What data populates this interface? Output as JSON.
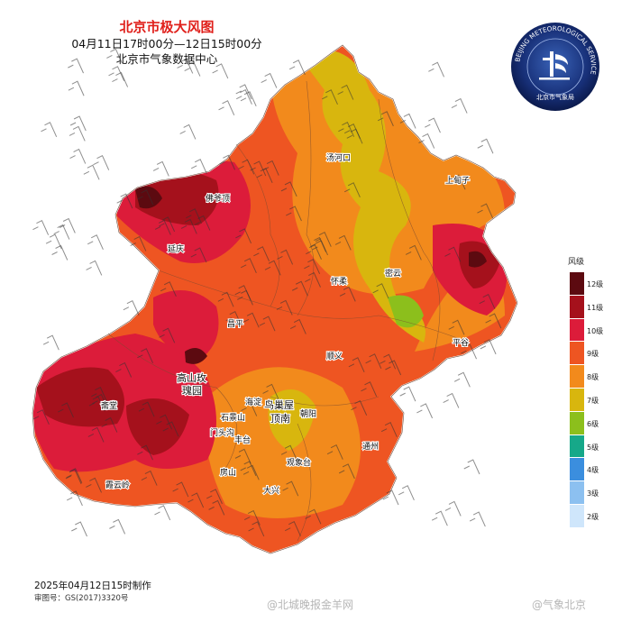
{
  "header": {
    "title": "北京市极大风图",
    "time_range": "04月11日17时00分—12日15时00分",
    "source": "北京市气象数据中心"
  },
  "logo": {
    "ring_text": "BEIJING METEOROLOGICAL SERVICE",
    "cn_text": "北京市气象局"
  },
  "legend": {
    "title": "风级",
    "levels": [
      {
        "label": "12级",
        "color": "#5c0a10"
      },
      {
        "label": "11级",
        "color": "#a5111c"
      },
      {
        "label": "10级",
        "color": "#dc1c3a"
      },
      {
        "label": "9级",
        "color": "#ee5522"
      },
      {
        "label": "8级",
        "color": "#f28a1c"
      },
      {
        "label": "7级",
        "color": "#d8b60e"
      },
      {
        "label": "6级",
        "color": "#8cbf1c"
      },
      {
        "label": "5级",
        "color": "#16a889"
      },
      {
        "label": "4级",
        "color": "#3b8ede"
      },
      {
        "label": "3级",
        "color": "#8cc0f0"
      },
      {
        "label": "2级",
        "color": "#cfe6fb"
      }
    ]
  },
  "places": [
    {
      "name": "汤河口"
    },
    {
      "name": "上甸子"
    },
    {
      "name": "佛爷顶"
    },
    {
      "name": "延庆"
    },
    {
      "name": "怀柔"
    },
    {
      "name": "密云"
    },
    {
      "name": "昌平"
    },
    {
      "name": "平谷"
    },
    {
      "name": "顺义"
    },
    {
      "name": "高山玫"
    },
    {
      "name": "瑰园"
    },
    {
      "name": "斋堂"
    },
    {
      "name": "海淀"
    },
    {
      "name": "鸟巢屋"
    },
    {
      "name": "顶南"
    },
    {
      "name": "朝阳"
    },
    {
      "name": "石景山"
    },
    {
      "name": "门头沟"
    },
    {
      "name": "丰台"
    },
    {
      "name": "通州"
    },
    {
      "name": "观象台"
    },
    {
      "name": "房山"
    },
    {
      "name": "大兴"
    },
    {
      "name": "霞云岭"
    }
  ],
  "footer": {
    "made_at": "2025年04月12日15时制作",
    "review_no": "审图号：GS(2017)3320号"
  },
  "watermarks": [
    "@北城晚报金羊网",
    "@气象北京"
  ]
}
